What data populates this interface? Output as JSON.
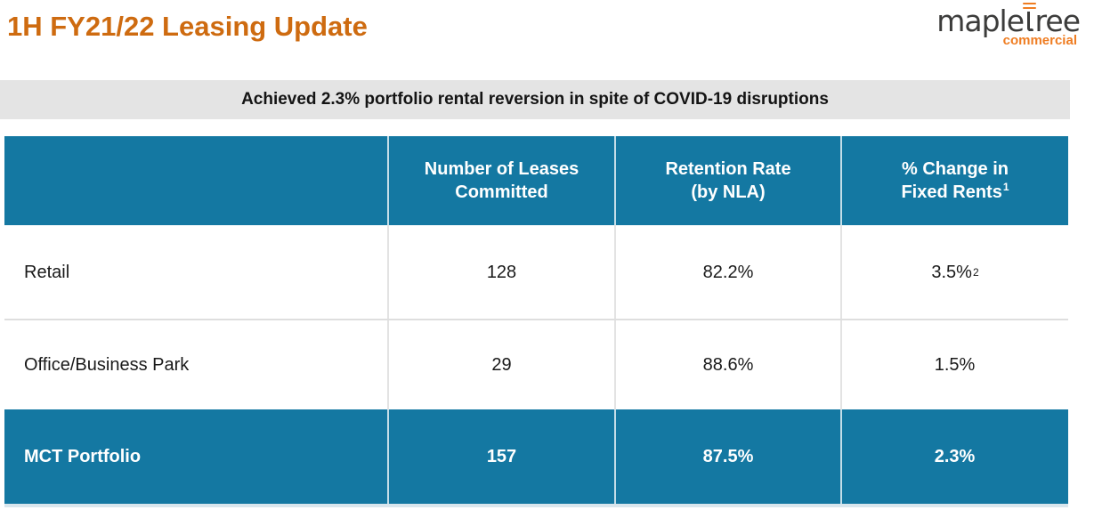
{
  "slide": {
    "title": "1H FY21/22 Leasing Update",
    "banner": "Achieved 2.3% portfolio rental reversion in spite of COVID-19 disruptions"
  },
  "logo": {
    "brand_prefix": "maple",
    "brand_suffix": "ree",
    "division": "commercial"
  },
  "table": {
    "headers": {
      "col1": "",
      "col2_line1": "Number of Leases",
      "col2_line2": "Committed",
      "col3_line1": "Retention Rate",
      "col3_line2": "(by NLA)",
      "col4_line1": "% Change in",
      "col4_line2": "Fixed Rents",
      "col4_sup": "1"
    },
    "rows": [
      {
        "label": "Retail",
        "leases": "128",
        "retention": "82.2%",
        "rent_change": "3.5%",
        "rent_change_sup": "2"
      },
      {
        "label": "Office/Business Park",
        "leases": "29",
        "retention": "88.6%",
        "rent_change": "1.5%",
        "rent_change_sup": ""
      },
      {
        "label": "MCT Portfolio",
        "leases": "157",
        "retention": "87.5%",
        "rent_change": "2.3%",
        "rent_change_sup": ""
      }
    ]
  },
  "colors": {
    "accent_orange": "#CE6B10",
    "logo_orange": "#EF7D22",
    "logo_charcoal": "#3C3C3B",
    "teal": "#1478A2",
    "banner_gray": "#E4E4E4"
  }
}
